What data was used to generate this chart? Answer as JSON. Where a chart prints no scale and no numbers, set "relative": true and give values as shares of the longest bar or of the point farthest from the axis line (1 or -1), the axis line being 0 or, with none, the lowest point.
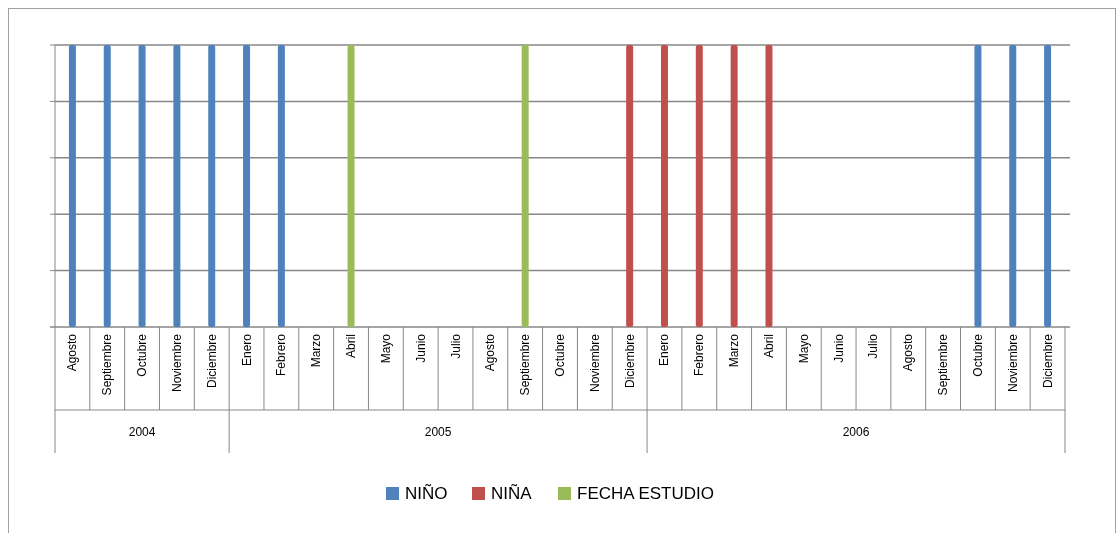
{
  "chart_data": {
    "type": "bar",
    "relative": true,
    "grid": "y",
    "legend": "bottom",
    "categories": [
      "Agosto",
      "Septiembre",
      "Octubre",
      "Noviembre",
      "Diciembre",
      "Enero",
      "Febrero",
      "Marzo",
      "Abril",
      "Mayo",
      "Junio",
      "Julio",
      "Agosto",
      "Septiembre",
      "Octubre",
      "Noviembre",
      "Diciembre",
      "Enero",
      "Febrero",
      "Marzo",
      "Abril",
      "Mayo",
      "Junio",
      "Julio",
      "Agosto",
      "Septiembre",
      "Octubre",
      "Noviembre",
      "Diciembre"
    ],
    "annotations": [
      "2004",
      "2005",
      "2006"
    ],
    "series": [
      {
        "name": "NIÑO",
        "color": "#4f81bd",
        "values": [
          1,
          1,
          1,
          1,
          1,
          1,
          1,
          null,
          null,
          null,
          null,
          null,
          null,
          null,
          null,
          null,
          null,
          null,
          null,
          null,
          null,
          null,
          null,
          null,
          null,
          null,
          1,
          1,
          1
        ]
      },
      {
        "name": "NIÑA",
        "color": "#c0504d",
        "values": [
          null,
          null,
          null,
          null,
          null,
          null,
          null,
          null,
          null,
          null,
          null,
          null,
          null,
          null,
          null,
          null,
          1,
          1,
          1,
          1,
          1,
          null,
          null,
          null,
          null,
          null,
          null,
          null,
          null
        ]
      },
      {
        "name": "FECHA ESTUDIO",
        "color": "#9bbb59",
        "values": [
          null,
          null,
          null,
          null,
          null,
          null,
          null,
          null,
          1,
          null,
          null,
          null,
          null,
          1,
          null,
          null,
          null,
          null,
          null,
          null,
          null,
          null,
          null,
          null,
          null,
          null,
          null,
          null,
          null
        ]
      }
    ]
  }
}
